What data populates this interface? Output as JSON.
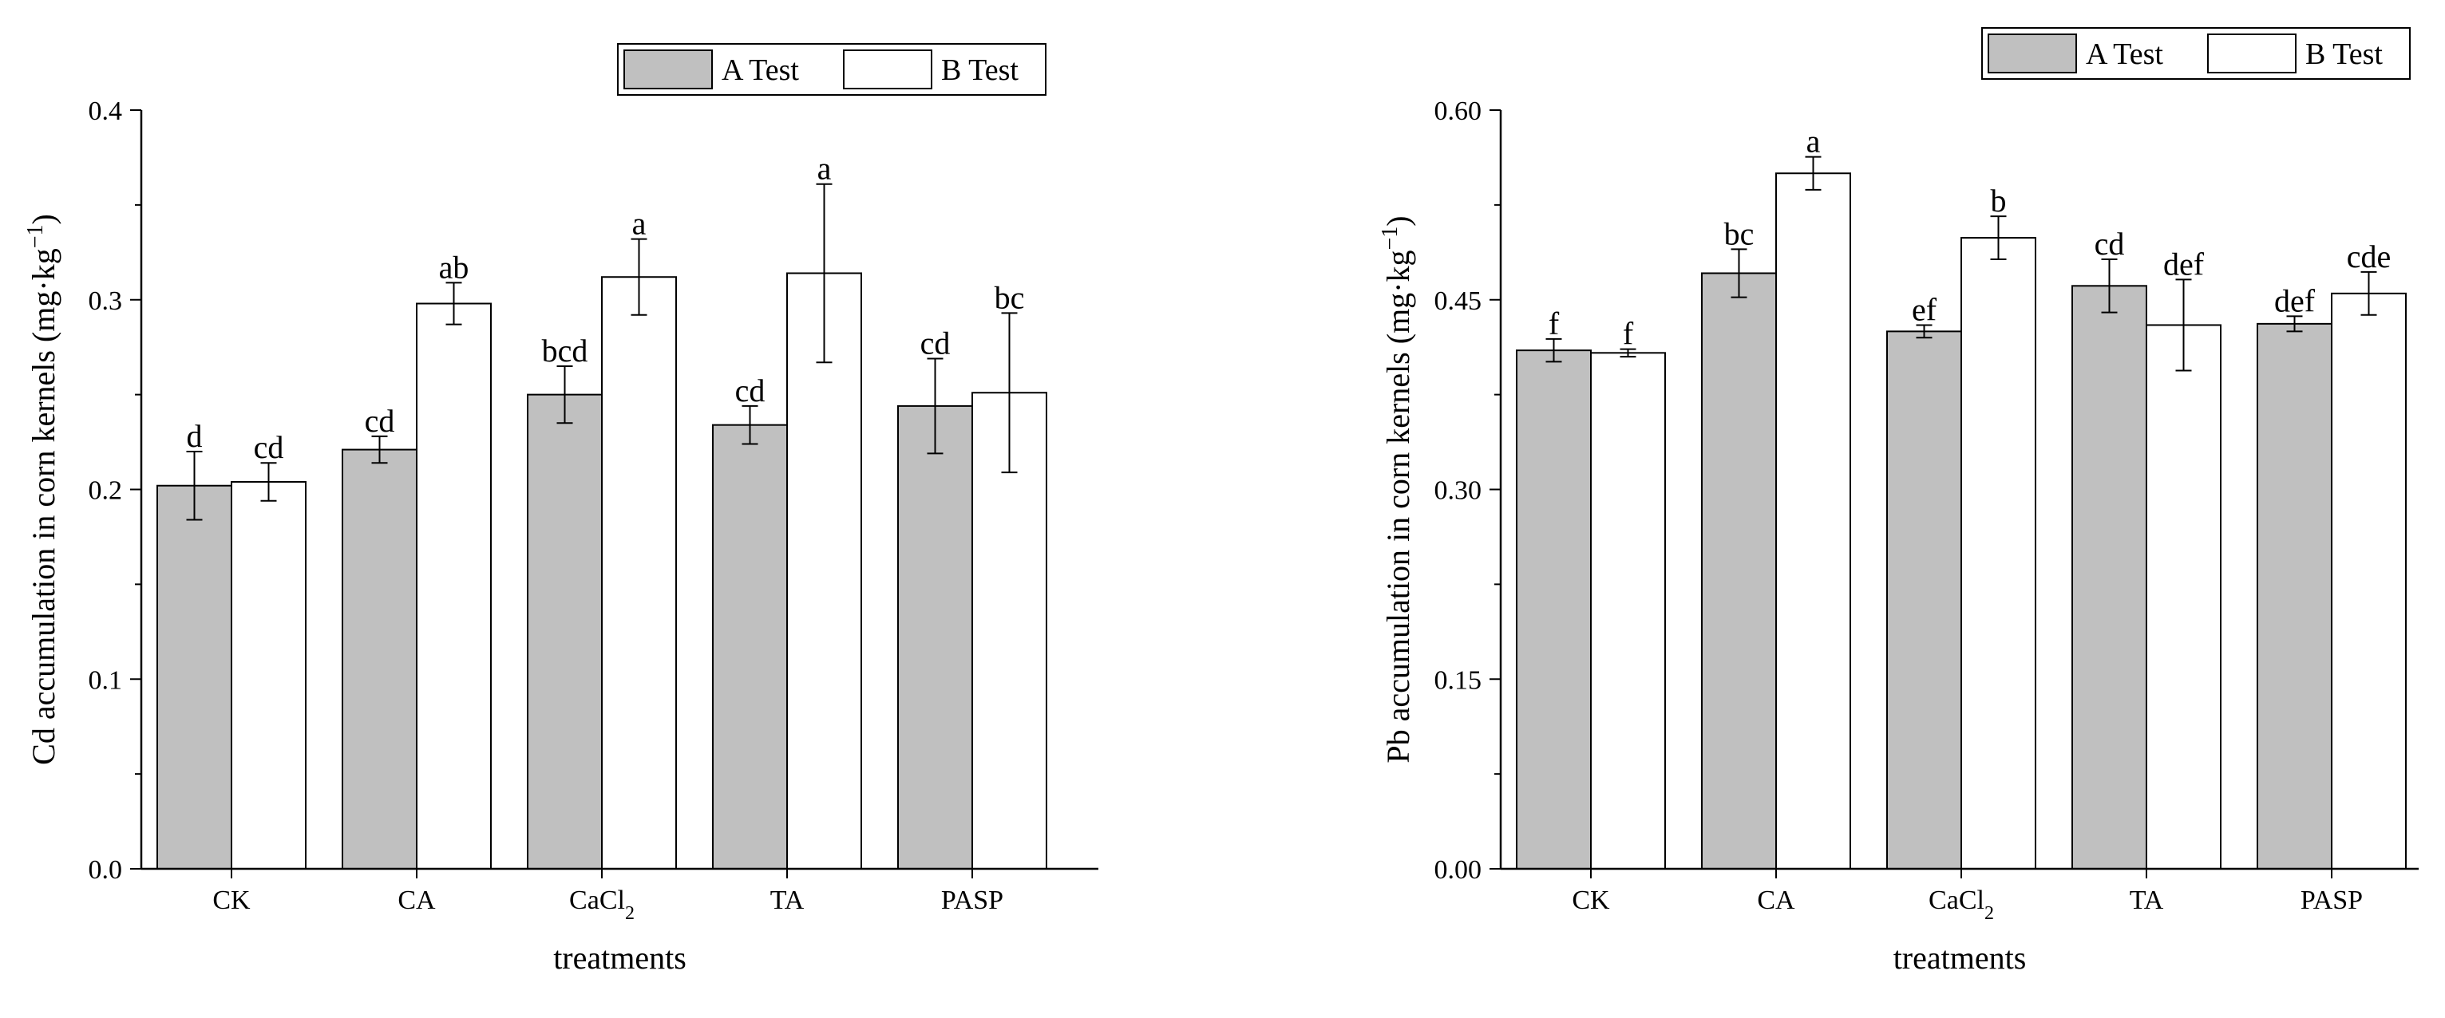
{
  "colors": {
    "a_test_fill": "#c0c0c0",
    "b_test_fill": "#ffffff",
    "stroke": "#000000"
  },
  "chart_data": [
    {
      "type": "bar",
      "title": "",
      "xlabel": "treatments",
      "ylabel_main": "Cd accumulation in corn kernels (mg·kg",
      "ylabel_sup": "−1",
      "ylabel_end": ")",
      "categories": [
        {
          "name": "CK",
          "sub": "",
          "tail": ""
        },
        {
          "name": "CA",
          "sub": "",
          "tail": ""
        },
        {
          "name": "CaCl",
          "sub": "2",
          "tail": ""
        },
        {
          "name": "TA",
          "sub": "",
          "tail": ""
        },
        {
          "name": "PASP",
          "sub": "",
          "tail": ""
        }
      ],
      "ylim": [
        0,
        0.4
      ],
      "yticks": [
        0.0,
        0.1,
        0.2,
        0.3,
        0.4
      ],
      "ytick_labels": [
        "0.0",
        "0.1",
        "0.2",
        "0.3",
        "0.4"
      ],
      "legend": {
        "placement": "top-right",
        "entries": [
          "A Test",
          "B Test"
        ]
      },
      "series": [
        {
          "name": "A Test",
          "values": [
            0.202,
            0.221,
            0.25,
            0.234,
            0.244
          ],
          "errors": [
            0.018,
            0.007,
            0.015,
            0.01,
            0.025
          ],
          "labels": [
            "d",
            "cd",
            "bcd",
            "cd",
            "cd"
          ]
        },
        {
          "name": "B Test",
          "values": [
            0.204,
            0.298,
            0.312,
            0.314,
            0.251
          ],
          "errors": [
            0.01,
            0.011,
            0.02,
            0.047,
            0.042
          ],
          "labels": [
            "cd",
            "ab",
            "a",
            "a",
            "bc"
          ]
        }
      ]
    },
    {
      "type": "bar",
      "title": "",
      "xlabel": "treatments",
      "ylabel_main": "Pb accumulation in corn kernels (mg·kg",
      "ylabel_sup": "−1",
      "ylabel_end": ")",
      "categories": [
        {
          "name": "CK",
          "sub": "",
          "tail": ""
        },
        {
          "name": "CA",
          "sub": "",
          "tail": ""
        },
        {
          "name": "CaCl",
          "sub": "2",
          "tail": ""
        },
        {
          "name": "TA",
          "sub": "",
          "tail": ""
        },
        {
          "name": "PASP",
          "sub": "",
          "tail": ""
        }
      ],
      "ylim": [
        0,
        0.6
      ],
      "yticks": [
        0.0,
        0.15,
        0.3,
        0.45,
        0.6
      ],
      "ytick_labels": [
        "0.00",
        "0.15",
        "0.30",
        "0.45",
        "0.60"
      ],
      "legend": {
        "placement": "top-right",
        "entries": [
          "A Test",
          "B Test"
        ]
      },
      "series": [
        {
          "name": "A Test",
          "values": [
            0.41,
            0.471,
            0.425,
            0.461,
            0.431
          ],
          "errors": [
            0.009,
            0.019,
            0.005,
            0.021,
            0.006
          ],
          "labels": [
            "f",
            "bc",
            "ef",
            "cd",
            "def"
          ]
        },
        {
          "name": "B Test",
          "values": [
            0.408,
            0.55,
            0.499,
            0.43,
            0.455
          ],
          "errors": [
            0.003,
            0.013,
            0.017,
            0.036,
            0.017
          ],
          "labels": [
            "f",
            "a",
            "b",
            "def",
            "cde"
          ]
        }
      ]
    }
  ]
}
